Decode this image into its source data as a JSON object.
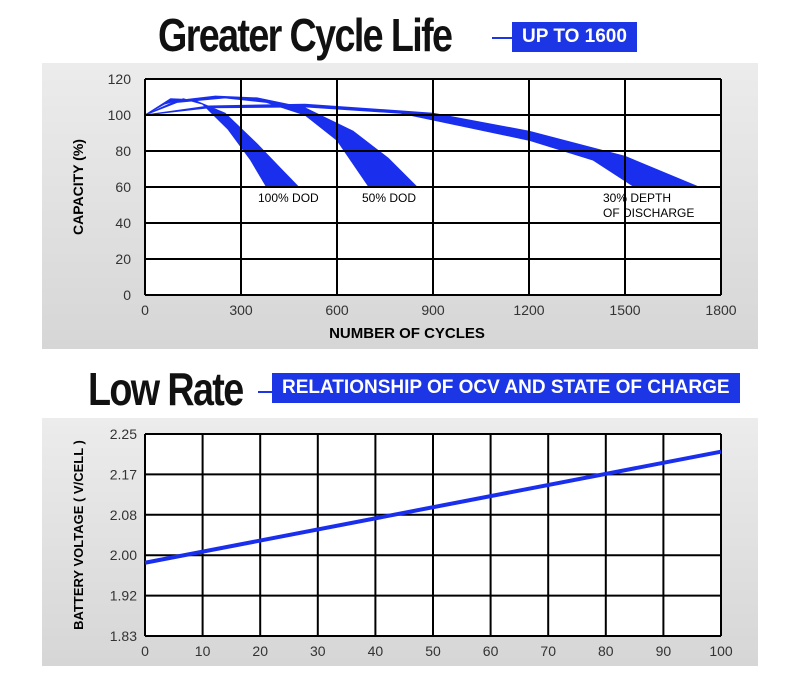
{
  "colors": {
    "accent": "#1c36e6",
    "band": "#1a2fee",
    "grid": "#000000"
  },
  "header1": {
    "title": "Greater Cycle Life",
    "badge": "UP TO 1600"
  },
  "header2": {
    "title": "Low Rate",
    "badge": "RELATIONSHIP OF OCV AND STATE OF CHARGE"
  },
  "chart_data": [
    {
      "type": "area",
      "xlabel": "NUMBER OF CYCLES",
      "ylabel": "CAPACITY (%)",
      "xlim": [
        0,
        1800
      ],
      "ylim": [
        0,
        120
      ],
      "xticks": [
        "0",
        "300",
        "600",
        "900",
        "1200",
        "1500",
        "1800"
      ],
      "yticks": [
        "0",
        "20",
        "40",
        "60",
        "80",
        "100",
        "120"
      ],
      "grid": true,
      "series": [
        {
          "name": "100% DOD",
          "upper": [
            [
              0,
              100
            ],
            [
              80,
              109
            ],
            [
              150,
              108.5
            ],
            [
              250,
              101
            ],
            [
              350,
              84
            ],
            [
              420,
              71
            ],
            [
              480,
              60
            ]
          ],
          "lower": [
            [
              0,
              100
            ],
            [
              60,
              106
            ],
            [
              120,
              109
            ],
            [
              180,
              106
            ],
            [
              260,
              92
            ],
            [
              330,
              75
            ],
            [
              380,
              60
            ]
          ]
        },
        {
          "name": "50% DOD",
          "upper": [
            [
              0,
              100
            ],
            [
              100,
              108
            ],
            [
              220,
              110.5
            ],
            [
              350,
              109.5
            ],
            [
              500,
              104
            ],
            [
              650,
              91
            ],
            [
              760,
              76
            ],
            [
              850,
              60
            ]
          ],
          "lower": [
            [
              0,
              100
            ],
            [
              100,
              107
            ],
            [
              250,
              109.5
            ],
            [
              380,
              107
            ],
            [
              500,
              100
            ],
            [
              600,
              86
            ],
            [
              700,
              60
            ]
          ]
        },
        {
          "name": "30% DEPTH OF DISCHARGE",
          "label_lines": [
            "30% DEPTH",
            "OF DISCHARGE"
          ],
          "upper": [
            [
              0,
              100
            ],
            [
              200,
              105
            ],
            [
              500,
              106
            ],
            [
              900,
              101
            ],
            [
              1200,
              91
            ],
            [
              1500,
              77
            ],
            [
              1730,
              60
            ]
          ],
          "lower": [
            [
              0,
              100
            ],
            [
              200,
              104
            ],
            [
              500,
              104.5
            ],
            [
              800,
              101
            ],
            [
              1200,
              86
            ],
            [
              1400,
              75
            ],
            [
              1530,
              60
            ]
          ]
        }
      ]
    },
    {
      "type": "line",
      "xlabel": "",
      "ylabel": "BATTERY VOLTAGE ( V/CELL )",
      "xlim": [
        0,
        100
      ],
      "xticks": [
        "0",
        "10",
        "20",
        "30",
        "40",
        "50",
        "60",
        "70",
        "80",
        "90",
        "100"
      ],
      "yticks": [
        "1.83",
        "1.92",
        "2.00",
        "2.08",
        "2.17",
        "2.25"
      ],
      "grid": true,
      "series": [
        {
          "x": [
            0,
            100
          ],
          "y": [
            1.985,
            2.215
          ]
        }
      ]
    }
  ]
}
